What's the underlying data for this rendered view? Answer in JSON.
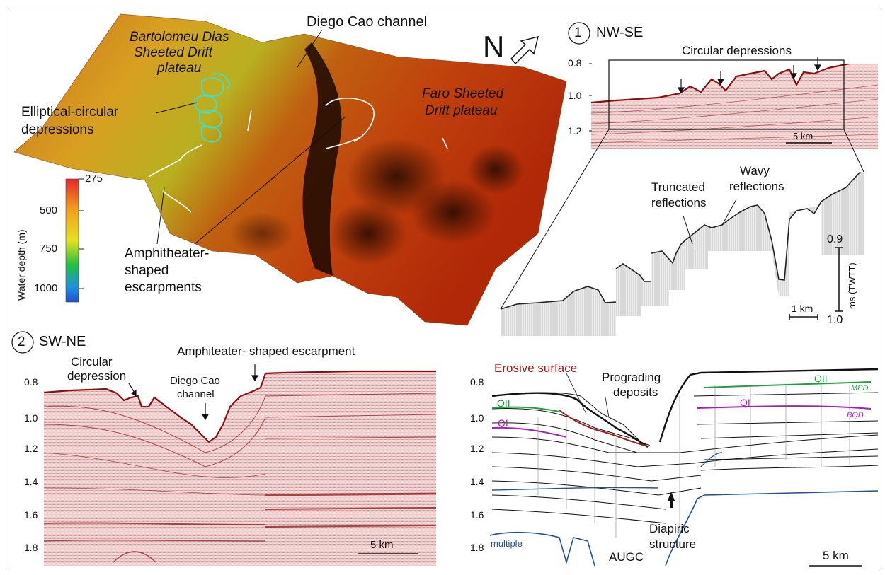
{
  "block_map": {
    "labels": {
      "diego_cao_channel": "Diego Cao channel",
      "bartolomeu_1": "Bartolomeu Dias",
      "bartolomeu_2": "Sheeted Drift",
      "bartolomeu_3": "plateau",
      "faro_1": "Faro Sheeted",
      "faro_2": "Drift plateau",
      "elliptical_1": "Elliptical-circular",
      "elliptical_2": "depressions",
      "amphitheater_1": "Amphitheater-",
      "amphitheater_2": "shaped",
      "amphitheater_3": "escarpments",
      "north": "N"
    },
    "legend": {
      "title": "Water depth (m)",
      "ticks": [
        "275",
        "500",
        "750",
        "1000"
      ],
      "colors": [
        "#e8262a",
        "#f0a020",
        "#e6e020",
        "#20c040",
        "#2090e0",
        "#2050d0"
      ]
    }
  },
  "profile1": {
    "number": "1",
    "title": "NW-SE",
    "annotation": "Circular depressions",
    "y_ticks": [
      "0.8",
      "1.0",
      "1.2"
    ],
    "scale_label": "5 km"
  },
  "profile1_zoom": {
    "truncated_1": "Truncated",
    "truncated_2": "reflections",
    "wavy_1": "Wavy",
    "wavy_2": "reflections",
    "axis_label": "ms (TWTT)",
    "axis_top": "0.9",
    "axis_bottom": "1.0",
    "scale_label": "1 km"
  },
  "profile2": {
    "number": "2",
    "title": "SW-NE",
    "amphiteater": "Amphiteater- shaped escarpment",
    "circular_1": "Circular",
    "circular_2": "depression",
    "diego_1": "Diego Cao",
    "diego_2": "channel",
    "y_ticks": [
      "0.8",
      "1.0",
      "1.2",
      "1.4",
      "1.6",
      "1.8"
    ],
    "scale_label": "5 km"
  },
  "interpretation": {
    "erosive": "Erosive surface",
    "prograding_1": "Prograding",
    "prograding_2": "deposits",
    "qii_left": "QII",
    "qi_left": "QI",
    "qii_right": "QII",
    "qi_right": "QI",
    "mpd": "MPD",
    "bqd": "BQD",
    "diapiric_1": "Diapiric",
    "diapiric_2": "structure",
    "augc": "AUGC",
    "multiple": "multiple",
    "y_ticks": [
      "0.8",
      "1.0",
      "1.2",
      "1.4",
      "1.6",
      "1.8"
    ],
    "scale_label": "5 km",
    "colors": {
      "erosive": "#a01818",
      "qii": "#20a040",
      "qi": "#a020c0",
      "multiple": "#2050a0"
    }
  }
}
